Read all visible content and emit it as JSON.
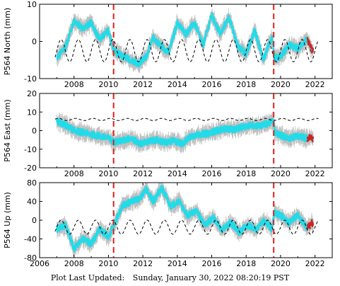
{
  "footer": {
    "label": "Plot Last Updated:",
    "value": "Sunday, January 30, 2022 08:20:19 PST"
  },
  "colors": {
    "data": "#23dbe8",
    "errorbar": "#a8a8a8",
    "recent": "#d42020",
    "event": "#e0201c",
    "model": "#000000"
  },
  "chart_data": [
    {
      "type": "line",
      "ylabel": "P564 North (mm)",
      "ylim": [
        -10,
        10
      ],
      "yticks": [
        -10,
        0,
        10
      ],
      "xlim": [
        2006,
        2023
      ],
      "xticks": [
        2006,
        2008,
        2010,
        2012,
        2014,
        2016,
        2018,
        2020,
        2022
      ],
      "xtick_labels": [
        "",
        "2008",
        "2010",
        "2012",
        "2014",
        "2016",
        "2018",
        "2020",
        "2022"
      ],
      "event_lines": [
        2010.3,
        2019.6
      ],
      "series": [
        {
          "x": [
            2007.0,
            2007.5,
            2008.0,
            2008.5,
            2009.0,
            2009.5,
            2010.0,
            2010.3,
            2010.8,
            2011.3,
            2011.8,
            2012.2,
            2012.6,
            2013.0,
            2013.5,
            2014.0,
            2014.5,
            2015.0,
            2015.5,
            2016.0,
            2016.5,
            2017.0,
            2017.5,
            2018.0,
            2018.5,
            2019.0,
            2019.5,
            2019.65,
            2020.0,
            2020.5,
            2021.0,
            2021.5,
            2021.9
          ],
          "y": [
            -4.5,
            -1.5,
            5.5,
            3.5,
            5.0,
            0.5,
            3.0,
            -2.5,
            -4.0,
            -5.0,
            -6.0,
            -4.0,
            1.0,
            -1.0,
            -3.0,
            5.0,
            2.0,
            5.0,
            -1.0,
            7.0,
            2.0,
            6.5,
            -1.0,
            -3.5,
            3.0,
            -5.0,
            1.5,
            -4.5,
            -4.0,
            -1.0,
            -2.0,
            0.5,
            -3.0
          ]
        }
      ],
      "model": {
        "x0": 2006.9,
        "x1": 2022.2,
        "amplitude": 3.0,
        "offset": -2.5,
        "period": 1.0,
        "phase": 0.25
      }
    },
    {
      "type": "line",
      "ylabel": "P564 East (mm)",
      "ylim": [
        -20,
        20
      ],
      "yticks": [
        -20,
        -10,
        0,
        10,
        20
      ],
      "xlim": [
        2006,
        2023
      ],
      "xticks": [
        2006,
        2008,
        2010,
        2012,
        2014,
        2016,
        2018,
        2020,
        2022
      ],
      "xtick_labels": [
        "",
        "2008",
        "2010",
        "2012",
        "2014",
        "2016",
        "2018",
        "2020",
        "2022"
      ],
      "event_lines": [
        2010.3,
        2019.6
      ],
      "series": [
        {
          "x": [
            2007.0,
            2007.5,
            2008.0,
            2008.5,
            2009.0,
            2009.5,
            2010.0,
            2010.3,
            2010.8,
            2011.3,
            2011.8,
            2012.3,
            2012.8,
            2013.3,
            2013.8,
            2014.3,
            2014.8,
            2015.3,
            2015.8,
            2016.3,
            2016.8,
            2017.3,
            2017.8,
            2018.3,
            2018.8,
            2019.3,
            2019.6,
            2019.65,
            2020.0,
            2020.5,
            2021.0,
            2021.5,
            2021.9
          ],
          "y": [
            5.0,
            3.0,
            0.0,
            -1.0,
            -2.0,
            -3.0,
            -4.0,
            -6.0,
            -5.5,
            -4.0,
            -7.0,
            -6.0,
            -5.0,
            -6.5,
            -5.5,
            -7.0,
            -3.0,
            -2.0,
            -1.5,
            0.0,
            1.0,
            0.5,
            2.0,
            3.0,
            2.5,
            4.0,
            5.0,
            -1.0,
            -2.5,
            -4.0,
            -3.0,
            -4.0,
            -4.0
          ]
        }
      ],
      "model": {
        "x0": 2006.9,
        "x1": 2022.2,
        "amplitude": 0.6,
        "offset": 6.0,
        "period": 1.0,
        "phase": 0.1
      }
    },
    {
      "type": "line",
      "ylabel": "P564 Up (mm)",
      "ylim": [
        -80,
        80
      ],
      "yticks": [
        -80,
        -40,
        0,
        40,
        80
      ],
      "xlim": [
        2006,
        2023
      ],
      "xticks": [
        2006,
        2008,
        2010,
        2012,
        2014,
        2016,
        2018,
        2020,
        2022
      ],
      "xtick_labels": [
        "2006",
        "2008",
        "2010",
        "2012",
        "2014",
        "2016",
        "2018",
        "2020",
        "2022"
      ],
      "event_lines": [
        2010.3,
        2019.6
      ],
      "series": [
        {
          "x": [
            2007.0,
            2007.5,
            2008.0,
            2008.5,
            2009.0,
            2009.5,
            2010.0,
            2010.3,
            2010.8,
            2011.3,
            2011.8,
            2012.2,
            2012.6,
            2013.1,
            2013.6,
            2014.1,
            2014.6,
            2015.1,
            2015.6,
            2016.1,
            2016.6,
            2017.1,
            2017.6,
            2018.1,
            2018.6,
            2019.1,
            2019.5,
            2019.65,
            2020.0,
            2020.5,
            2021.0,
            2021.5,
            2021.9
          ],
          "y": [
            -20,
            -10,
            -60,
            -40,
            -50,
            -20,
            -35,
            -10,
            30,
            40,
            45,
            65,
            40,
            70,
            30,
            40,
            10,
            20,
            -10,
            5,
            -20,
            -5,
            -25,
            -10,
            -20,
            0,
            -20,
            15,
            10,
            -5,
            10,
            -15,
            -5
          ]
        }
      ],
      "model": {
        "x0": 2006.9,
        "x1": 2022.2,
        "amplitude": 15,
        "offset": -15,
        "period": 1.0,
        "phase": 0.25
      }
    }
  ]
}
